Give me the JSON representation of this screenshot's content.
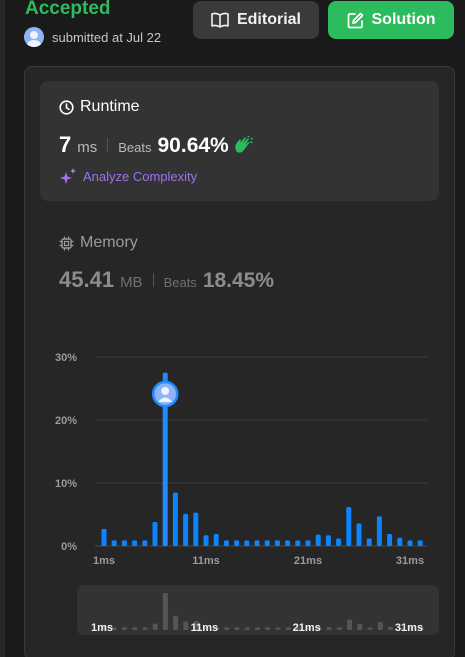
{
  "header": {
    "status": "Accepted",
    "submitted_text": "submitted at Jul 22",
    "editorial_label": "Editorial",
    "solution_label": "Solution"
  },
  "runtime": {
    "title": "Runtime",
    "value": "7",
    "unit": "ms",
    "beats_label": "Beats",
    "beats_value": "90.64%",
    "analyze_label": "Analyze Complexity"
  },
  "memory": {
    "title": "Memory",
    "value": "45.41",
    "unit": "MB",
    "beats_label": "Beats",
    "beats_value": "18.45%"
  },
  "colors": {
    "accepted": "#2cbb5d",
    "bar": "#0a84ff",
    "analyze": "#9e73f0"
  },
  "chart_data": {
    "type": "bar",
    "ylabel": "",
    "xlabel": "",
    "y_ticks": [
      "30%",
      "20%",
      "10%",
      "0%"
    ],
    "y_tick_values": [
      30,
      20,
      10,
      0
    ],
    "x_tick_labels": [
      "1ms",
      "11ms",
      "21ms",
      "31ms"
    ],
    "x_tick_values": [
      1,
      11,
      21,
      31
    ],
    "ylim": [
      0,
      30
    ],
    "x": [
      1,
      2,
      3,
      4,
      5,
      6,
      7,
      8,
      9,
      10,
      11,
      12,
      13,
      14,
      15,
      16,
      17,
      18,
      19,
      20,
      21,
      22,
      23,
      24,
      25,
      26,
      27,
      28,
      29,
      30,
      31,
      32
    ],
    "values": [
      2.7,
      0.9,
      0.9,
      0.9,
      0.9,
      3.8,
      27.5,
      8.5,
      5.1,
      5.3,
      1.7,
      1.9,
      0.9,
      0.9,
      0.9,
      0.9,
      0.9,
      0.9,
      0.9,
      0.9,
      0.9,
      1.8,
      1.7,
      1.2,
      6.2,
      3.6,
      1.2,
      4.7,
      1.9,
      1.3,
      0.9,
      0.9
    ],
    "highlight_x": 7,
    "grid": true
  }
}
